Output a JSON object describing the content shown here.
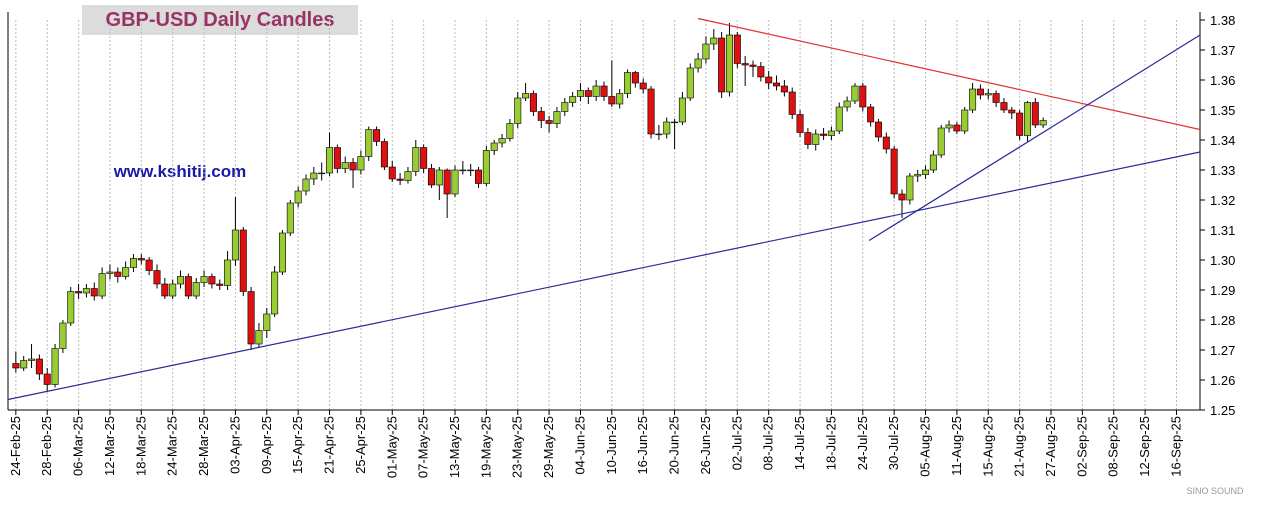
{
  "chart_data": {
    "type": "candlestick",
    "title": "GBP-USD Daily Candles",
    "annotation": "www.kshitij.com",
    "watermark": "SINO SOUND",
    "up_color": "#99cc33",
    "down_color": "#dd1111",
    "grid": true,
    "xlim": [
      -1,
      151
    ],
    "ylim": [
      1.25,
      1.38
    ],
    "yticks": [
      1.25,
      1.26,
      1.27,
      1.28,
      1.29,
      {
        "value": 1.3,
        "label": "1.30"
      },
      1.31,
      1.32,
      1.33,
      1.34,
      1.35,
      1.36,
      1.37,
      1.38
    ],
    "xticks": [
      {
        "value": 0,
        "label": "24-Feb-25"
      },
      {
        "value": 4,
        "label": "28-Feb-25"
      },
      {
        "value": 8,
        "label": "06-Mar-25"
      },
      {
        "value": 12,
        "label": "12-Mar-25"
      },
      {
        "value": 16,
        "label": "18-Mar-25"
      },
      {
        "value": 20,
        "label": "24-Mar-25"
      },
      {
        "value": 24,
        "label": "28-Mar-25"
      },
      {
        "value": 28,
        "label": "03-Apr-25"
      },
      {
        "value": 32,
        "label": "09-Apr-25"
      },
      {
        "value": 36,
        "label": "15-Apr-25"
      },
      {
        "value": 40,
        "label": "21-Apr-25"
      },
      {
        "value": 44,
        "label": "25-Apr-25"
      },
      {
        "value": 48,
        "label": "01-May-25"
      },
      {
        "value": 52,
        "label": "07-May-25"
      },
      {
        "value": 56,
        "label": "13-May-25"
      },
      {
        "value": 60,
        "label": "19-May-25"
      },
      {
        "value": 64,
        "label": "23-May-25"
      },
      {
        "value": 68,
        "label": "29-May-25"
      },
      {
        "value": 72,
        "label": "04-Jun-25"
      },
      {
        "value": 76,
        "label": "10-Jun-25"
      },
      {
        "value": 80,
        "label": "16-Jun-25"
      },
      {
        "value": 84,
        "label": "20-Jun-25"
      },
      {
        "value": 88,
        "label": "26-Jun-25"
      },
      {
        "value": 92,
        "label": "02-Jul-25"
      },
      {
        "value": 96,
        "label": "08-Jul-25"
      },
      {
        "value": 100,
        "label": "14-Jul-25"
      },
      {
        "value": 104,
        "label": "18-Jul-25"
      },
      {
        "value": 108,
        "label": "24-Jul-25"
      },
      {
        "value": 112,
        "label": "30-Jul-25"
      },
      {
        "value": 116,
        "label": "05-Aug-25"
      },
      {
        "value": 120,
        "label": "11-Aug-25"
      },
      {
        "value": 124,
        "label": "15-Aug-25"
      },
      {
        "value": 128,
        "label": "21-Aug-25"
      },
      {
        "value": 132,
        "label": "27-Aug-25"
      },
      {
        "value": 136,
        "label": "02-Sep-25"
      },
      {
        "value": 140,
        "label": "08-Sep-25"
      },
      {
        "value": 144,
        "label": "12-Sep-25"
      },
      {
        "value": 148,
        "label": "16-Sep-25"
      }
    ],
    "candles": [
      [
        1.2655,
        1.2695,
        1.2625,
        1.264
      ],
      [
        1.264,
        1.268,
        1.263,
        1.2665
      ],
      [
        1.2665,
        1.272,
        1.264,
        1.267
      ],
      [
        1.267,
        1.2685,
        1.26,
        1.262
      ],
      [
        1.262,
        1.264,
        1.256,
        1.2585
      ],
      [
        1.2585,
        1.272,
        1.2575,
        1.2705
      ],
      [
        1.2705,
        1.28,
        1.269,
        1.279
      ],
      [
        1.279,
        1.291,
        1.278,
        1.2895
      ],
      [
        1.2895,
        1.292,
        1.287,
        1.289
      ],
      [
        1.289,
        1.292,
        1.2875,
        1.2905
      ],
      [
        1.2905,
        1.2925,
        1.2865,
        1.288
      ],
      [
        1.288,
        1.2975,
        1.287,
        1.2955
      ],
      [
        1.2955,
        1.2985,
        1.2935,
        1.296
      ],
      [
        1.296,
        1.2975,
        1.2925,
        1.2945
      ],
      [
        1.2945,
        1.2995,
        1.2935,
        1.2975
      ],
      [
        1.2975,
        1.302,
        1.296,
        1.3005
      ],
      [
        1.3005,
        1.302,
        1.2985,
        1.3
      ],
      [
        1.3,
        1.301,
        1.295,
        1.2965
      ],
      [
        1.2965,
        1.2985,
        1.2905,
        1.292
      ],
      [
        1.292,
        1.294,
        1.287,
        1.288
      ],
      [
        1.288,
        1.2935,
        1.287,
        1.292
      ],
      [
        1.292,
        1.2965,
        1.2905,
        1.2945
      ],
      [
        1.2945,
        1.2955,
        1.287,
        1.288
      ],
      [
        1.288,
        1.294,
        1.287,
        1.2925
      ],
      [
        1.2925,
        1.2965,
        1.291,
        1.2945
      ],
      [
        1.2945,
        1.2955,
        1.2905,
        1.292
      ],
      [
        1.292,
        1.2935,
        1.29,
        1.2915
      ],
      [
        1.2915,
        1.303,
        1.29,
        1.3
      ],
      [
        1.3,
        1.321,
        1.298,
        1.31
      ],
      [
        1.31,
        1.311,
        1.288,
        1.2895
      ],
      [
        1.2895,
        1.291,
        1.27,
        1.272
      ],
      [
        1.272,
        1.279,
        1.271,
        1.2765
      ],
      [
        1.2765,
        1.284,
        1.274,
        1.282
      ],
      [
        1.282,
        1.298,
        1.281,
        1.296
      ],
      [
        1.296,
        1.31,
        1.295,
        1.309
      ],
      [
        1.309,
        1.32,
        1.308,
        1.319
      ],
      [
        1.319,
        1.3245,
        1.3175,
        1.323
      ],
      [
        1.323,
        1.3285,
        1.3215,
        1.327
      ],
      [
        1.327,
        1.331,
        1.325,
        1.329
      ],
      [
        1.329,
        1.3325,
        1.3265,
        1.329
      ],
      [
        1.329,
        1.3425,
        1.328,
        1.3375
      ],
      [
        1.3375,
        1.3385,
        1.329,
        1.3305
      ],
      [
        1.3305,
        1.3345,
        1.329,
        1.3325
      ],
      [
        1.3325,
        1.334,
        1.324,
        1.33
      ],
      [
        1.33,
        1.3365,
        1.3285,
        1.3345
      ],
      [
        1.3345,
        1.3445,
        1.333,
        1.3435
      ],
      [
        1.3435,
        1.3445,
        1.338,
        1.3395
      ],
      [
        1.3395,
        1.3405,
        1.33,
        1.331
      ],
      [
        1.331,
        1.333,
        1.326,
        1.327
      ],
      [
        1.327,
        1.329,
        1.325,
        1.3265
      ],
      [
        1.3265,
        1.331,
        1.3255,
        1.3295
      ],
      [
        1.3295,
        1.34,
        1.328,
        1.3375
      ],
      [
        1.3375,
        1.3385,
        1.329,
        1.3305
      ],
      [
        1.3305,
        1.332,
        1.324,
        1.325
      ],
      [
        1.325,
        1.331,
        1.32,
        1.33
      ],
      [
        1.33,
        1.3305,
        1.314,
        1.322
      ],
      [
        1.322,
        1.3315,
        1.321,
        1.33
      ],
      [
        1.33,
        1.333,
        1.3285,
        1.33
      ],
      [
        1.33,
        1.332,
        1.328,
        1.33
      ],
      [
        1.33,
        1.331,
        1.324,
        1.3255
      ],
      [
        1.3255,
        1.338,
        1.3245,
        1.3365
      ],
      [
        1.3365,
        1.34,
        1.335,
        1.339
      ],
      [
        1.339,
        1.342,
        1.3375,
        1.3405
      ],
      [
        1.3405,
        1.347,
        1.3395,
        1.3455
      ],
      [
        1.3455,
        1.356,
        1.344,
        1.354
      ],
      [
        1.354,
        1.359,
        1.353,
        1.3555
      ],
      [
        1.3555,
        1.3565,
        1.348,
        1.3495
      ],
      [
        1.3495,
        1.351,
        1.344,
        1.3465
      ],
      [
        1.3465,
        1.348,
        1.3425,
        1.3455
      ],
      [
        1.3455,
        1.351,
        1.344,
        1.3495
      ],
      [
        1.3495,
        1.354,
        1.348,
        1.3525
      ],
      [
        1.3525,
        1.356,
        1.351,
        1.3545
      ],
      [
        1.3545,
        1.359,
        1.353,
        1.3565
      ],
      [
        1.3565,
        1.3575,
        1.352,
        1.3545
      ],
      [
        1.3545,
        1.36,
        1.353,
        1.358
      ],
      [
        1.358,
        1.3595,
        1.353,
        1.3545
      ],
      [
        1.3545,
        1.3665,
        1.351,
        1.352
      ],
      [
        1.352,
        1.357,
        1.3505,
        1.3555
      ],
      [
        1.3555,
        1.3635,
        1.354,
        1.3625
      ],
      [
        1.3625,
        1.363,
        1.3575,
        1.359
      ],
      [
        1.359,
        1.3605,
        1.3555,
        1.357
      ],
      [
        1.357,
        1.358,
        1.3405,
        1.342
      ],
      [
        1.342,
        1.345,
        1.34,
        1.342
      ],
      [
        1.342,
        1.3475,
        1.3405,
        1.346
      ],
      [
        1.346,
        1.347,
        1.337,
        1.346
      ],
      [
        1.346,
        1.356,
        1.345,
        1.354
      ],
      [
        1.354,
        1.3655,
        1.353,
        1.364
      ],
      [
        1.364,
        1.369,
        1.3625,
        1.367
      ],
      [
        1.367,
        1.3745,
        1.3655,
        1.372
      ],
      [
        1.372,
        1.377,
        1.37,
        1.374
      ],
      [
        1.374,
        1.376,
        1.354,
        1.356
      ],
      [
        1.356,
        1.379,
        1.3545,
        1.375
      ],
      [
        1.375,
        1.376,
        1.364,
        1.3655
      ],
      [
        1.3655,
        1.368,
        1.358,
        1.365
      ],
      [
        1.365,
        1.3665,
        1.361,
        1.3645
      ],
      [
        1.3645,
        1.366,
        1.3595,
        1.361
      ],
      [
        1.361,
        1.363,
        1.357,
        1.359
      ],
      [
        1.359,
        1.3615,
        1.3565,
        1.358
      ],
      [
        1.358,
        1.36,
        1.3545,
        1.356
      ],
      [
        1.356,
        1.3575,
        1.347,
        1.3485
      ],
      [
        1.3485,
        1.35,
        1.341,
        1.3425
      ],
      [
        1.3425,
        1.344,
        1.337,
        1.3385
      ],
      [
        1.3385,
        1.3435,
        1.3365,
        1.342
      ],
      [
        1.342,
        1.344,
        1.34,
        1.3415
      ],
      [
        1.3415,
        1.3445,
        1.34,
        1.343
      ],
      [
        1.343,
        1.3525,
        1.342,
        1.351
      ],
      [
        1.351,
        1.3545,
        1.3495,
        1.353
      ],
      [
        1.353,
        1.359,
        1.352,
        1.358
      ],
      [
        1.358,
        1.359,
        1.3495,
        1.351
      ],
      [
        1.351,
        1.352,
        1.3445,
        1.346
      ],
      [
        1.346,
        1.347,
        1.3395,
        1.341
      ],
      [
        1.341,
        1.3425,
        1.3355,
        1.337
      ],
      [
        1.337,
        1.338,
        1.3205,
        1.322
      ],
      [
        1.322,
        1.3235,
        1.314,
        1.32
      ],
      [
        1.32,
        1.329,
        1.3185,
        1.328
      ],
      [
        1.328,
        1.33,
        1.326,
        1.3285
      ],
      [
        1.3285,
        1.3315,
        1.327,
        1.33
      ],
      [
        1.33,
        1.3365,
        1.329,
        1.335
      ],
      [
        1.335,
        1.345,
        1.334,
        1.344
      ],
      [
        1.344,
        1.3465,
        1.3425,
        1.345
      ],
      [
        1.345,
        1.346,
        1.342,
        1.343
      ],
      [
        1.343,
        1.351,
        1.342,
        1.35
      ],
      [
        1.35,
        1.359,
        1.349,
        1.357
      ],
      [
        1.357,
        1.3585,
        1.3535,
        1.355
      ],
      [
        1.355,
        1.357,
        1.3535,
        1.3555
      ],
      [
        1.3555,
        1.3565,
        1.351,
        1.3525
      ],
      [
        1.3525,
        1.354,
        1.349,
        1.35
      ],
      [
        1.35,
        1.351,
        1.347,
        1.349
      ],
      [
        1.349,
        1.35,
        1.34,
        1.3415
      ],
      [
        1.3415,
        1.353,
        1.3395,
        1.3525
      ],
      [
        1.3525,
        1.354,
        1.344,
        1.345
      ],
      [
        1.345,
        1.3475,
        1.344,
        1.3465
      ]
    ],
    "trendlines": [
      {
        "color": "#e03030",
        "x": [
          87,
          151
        ],
        "values": [
          1.3805,
          1.3435
        ]
      },
      {
        "color": "#2a2a9a",
        "x": [
          -1,
          151
        ],
        "values": [
          1.2535,
          1.336
        ]
      },
      {
        "color": "#2a2a9a",
        "x": [
          108.8,
          151
        ],
        "values": [
          1.3065,
          1.375
        ]
      }
    ]
  }
}
